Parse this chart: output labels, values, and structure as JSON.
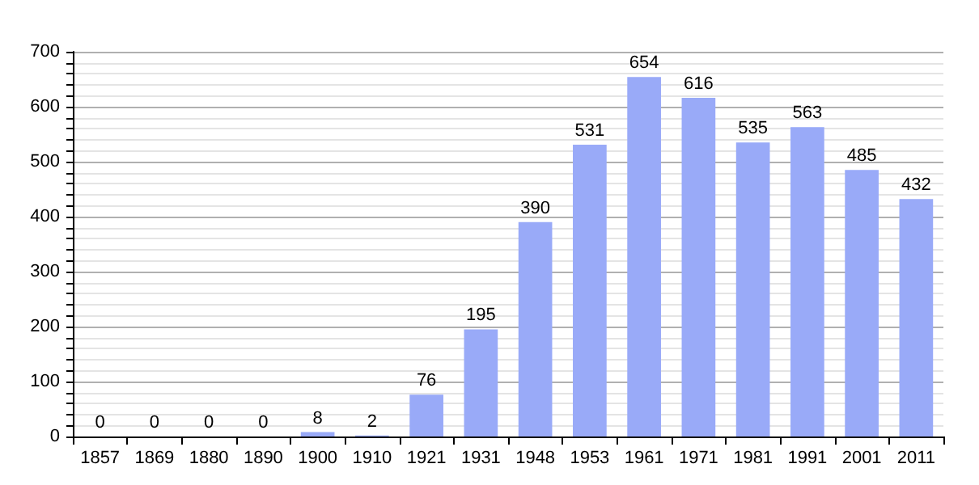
{
  "chart_data": {
    "type": "bar",
    "categories": [
      "1857",
      "1869",
      "1880",
      "1890",
      "1900",
      "1910",
      "1921",
      "1931",
      "1948",
      "1953",
      "1961",
      "1971",
      "1981",
      "1991",
      "2001",
      "2011"
    ],
    "values": [
      0,
      0,
      0,
      0,
      8,
      2,
      76,
      195,
      390,
      531,
      654,
      616,
      535,
      563,
      485,
      432
    ],
    "color": "#99aaf8",
    "ylim": [
      0,
      700
    ],
    "yticks": [
      0,
      {
        "value": 20,
        "label": null
      },
      {
        "value": 40,
        "label": null
      },
      {
        "value": 60,
        "label": null
      },
      {
        "value": 80,
        "label": null
      },
      100,
      {
        "value": 120,
        "label": null
      },
      {
        "value": 140,
        "label": null
      },
      {
        "value": 160,
        "label": null
      },
      {
        "value": 180,
        "label": null
      },
      200,
      {
        "value": 220,
        "label": null
      },
      {
        "value": 240,
        "label": null
      },
      {
        "value": 260,
        "label": null
      },
      {
        "value": 280,
        "label": null
      },
      300,
      {
        "value": 320,
        "label": null
      },
      {
        "value": 340,
        "label": null
      },
      {
        "value": 360,
        "label": null
      },
      {
        "value": 380,
        "label": null
      },
      400,
      {
        "value": 420,
        "label": null
      },
      {
        "value": 440,
        "label": null
      },
      {
        "value": 460,
        "label": null
      },
      {
        "value": 480,
        "label": null
      },
      500,
      {
        "value": 520,
        "label": null
      },
      {
        "value": 540,
        "label": null
      },
      {
        "value": 560,
        "label": null
      },
      {
        "value": 580,
        "label": null
      },
      600,
      {
        "value": 620,
        "label": null
      },
      {
        "value": 640,
        "label": null
      },
      {
        "value": 660,
        "label": null
      },
      {
        "value": 680,
        "label": null
      },
      700
    ],
    "grid": true,
    "data_labels": true
  }
}
